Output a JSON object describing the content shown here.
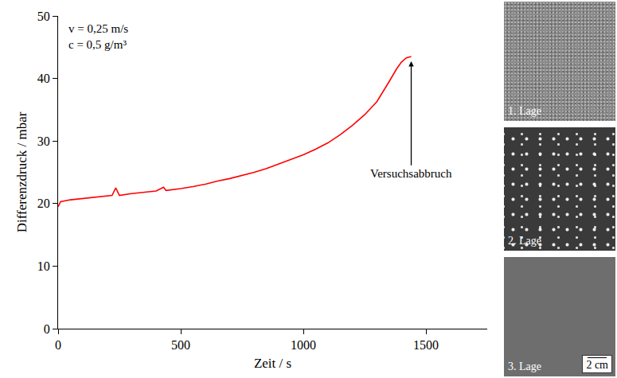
{
  "chart_data": {
    "type": "line",
    "x": [
      0,
      10,
      50,
      100,
      150,
      200,
      220,
      235,
      250,
      300,
      350,
      400,
      430,
      440,
      500,
      550,
      600,
      650,
      700,
      750,
      800,
      850,
      900,
      950,
      1000,
      1050,
      1100,
      1150,
      1200,
      1250,
      1300,
      1350,
      1380,
      1400,
      1420,
      1440
    ],
    "series": [
      {
        "name": "Differenzdruck",
        "color": "#ff0000",
        "values": [
          19.5,
          20.3,
          20.6,
          20.8,
          21.0,
          21.2,
          21.3,
          22.5,
          21.3,
          21.6,
          21.8,
          22.0,
          22.6,
          22.1,
          22.4,
          22.7,
          23.1,
          23.6,
          24.0,
          24.5,
          25.0,
          25.6,
          26.3,
          27.0,
          27.8,
          28.7,
          29.7,
          31.0,
          32.5,
          34.2,
          36.3,
          39.5,
          41.5,
          42.6,
          43.3,
          43.5
        ]
      }
    ],
    "x_label": "Zeit / s",
    "y_label": "Differenzdruck / mbar",
    "xlim": [
      0,
      1750
    ],
    "ylim": [
      0,
      50
    ],
    "xticks": [
      0,
      500,
      1000,
      1500
    ],
    "yticks": [
      0,
      10,
      20,
      30,
      40,
      50
    ],
    "grid": false,
    "annotations": [
      "v = 0,25 m/s",
      "c = 0,5 g/m³"
    ],
    "arrow_label": "Versuchsabbruch",
    "panels": [
      "1. Lage",
      "2. Lage",
      "3. Lage"
    ],
    "scale_bar": "2 cm"
  }
}
